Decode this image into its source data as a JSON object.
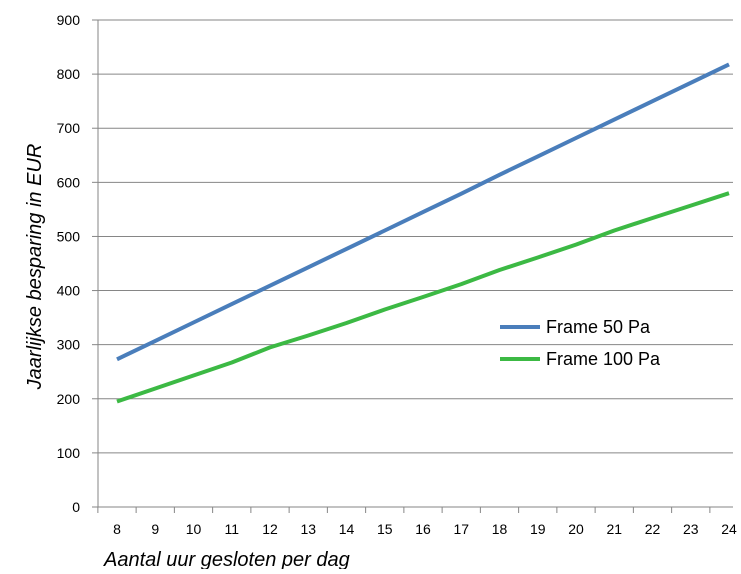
{
  "chart_data": {
    "type": "line",
    "title": "",
    "xlabel": "Aantal uur gesloten per dag",
    "ylabel": "Jaarlijkse besparing in EUR",
    "x": [
      8,
      9,
      10,
      11,
      12,
      13,
      14,
      15,
      16,
      17,
      18,
      19,
      20,
      21,
      22,
      23,
      24
    ],
    "x_tick_labels": [
      "8",
      "9",
      "10",
      "11",
      "12",
      "13",
      "14",
      "15",
      "16",
      "17",
      "18",
      "19",
      "20",
      "21",
      "22",
      "23",
      "24"
    ],
    "y_tick_labels": [
      "0",
      "100",
      "200",
      "300",
      "400",
      "500",
      "600",
      "700",
      "800",
      "900"
    ],
    "ylim": [
      0,
      900
    ],
    "y_step": 100,
    "grid": "horizontal",
    "legend_position": "right",
    "series": [
      {
        "name": "Frame 50 Pa",
        "color": "#4a7ebb",
        "values": [
          273,
          307,
          341,
          375,
          409,
          443,
          477,
          511,
          545,
          579,
          614,
          648,
          682,
          716,
          750,
          784,
          818
        ]
      },
      {
        "name": "Frame 100 Pa",
        "color": "#3cb944",
        "values": [
          195,
          219,
          243,
          267,
          295,
          317,
          340,
          365,
          388,
          412,
          438,
          461,
          485,
          511,
          534,
          557,
          580
        ]
      }
    ]
  }
}
